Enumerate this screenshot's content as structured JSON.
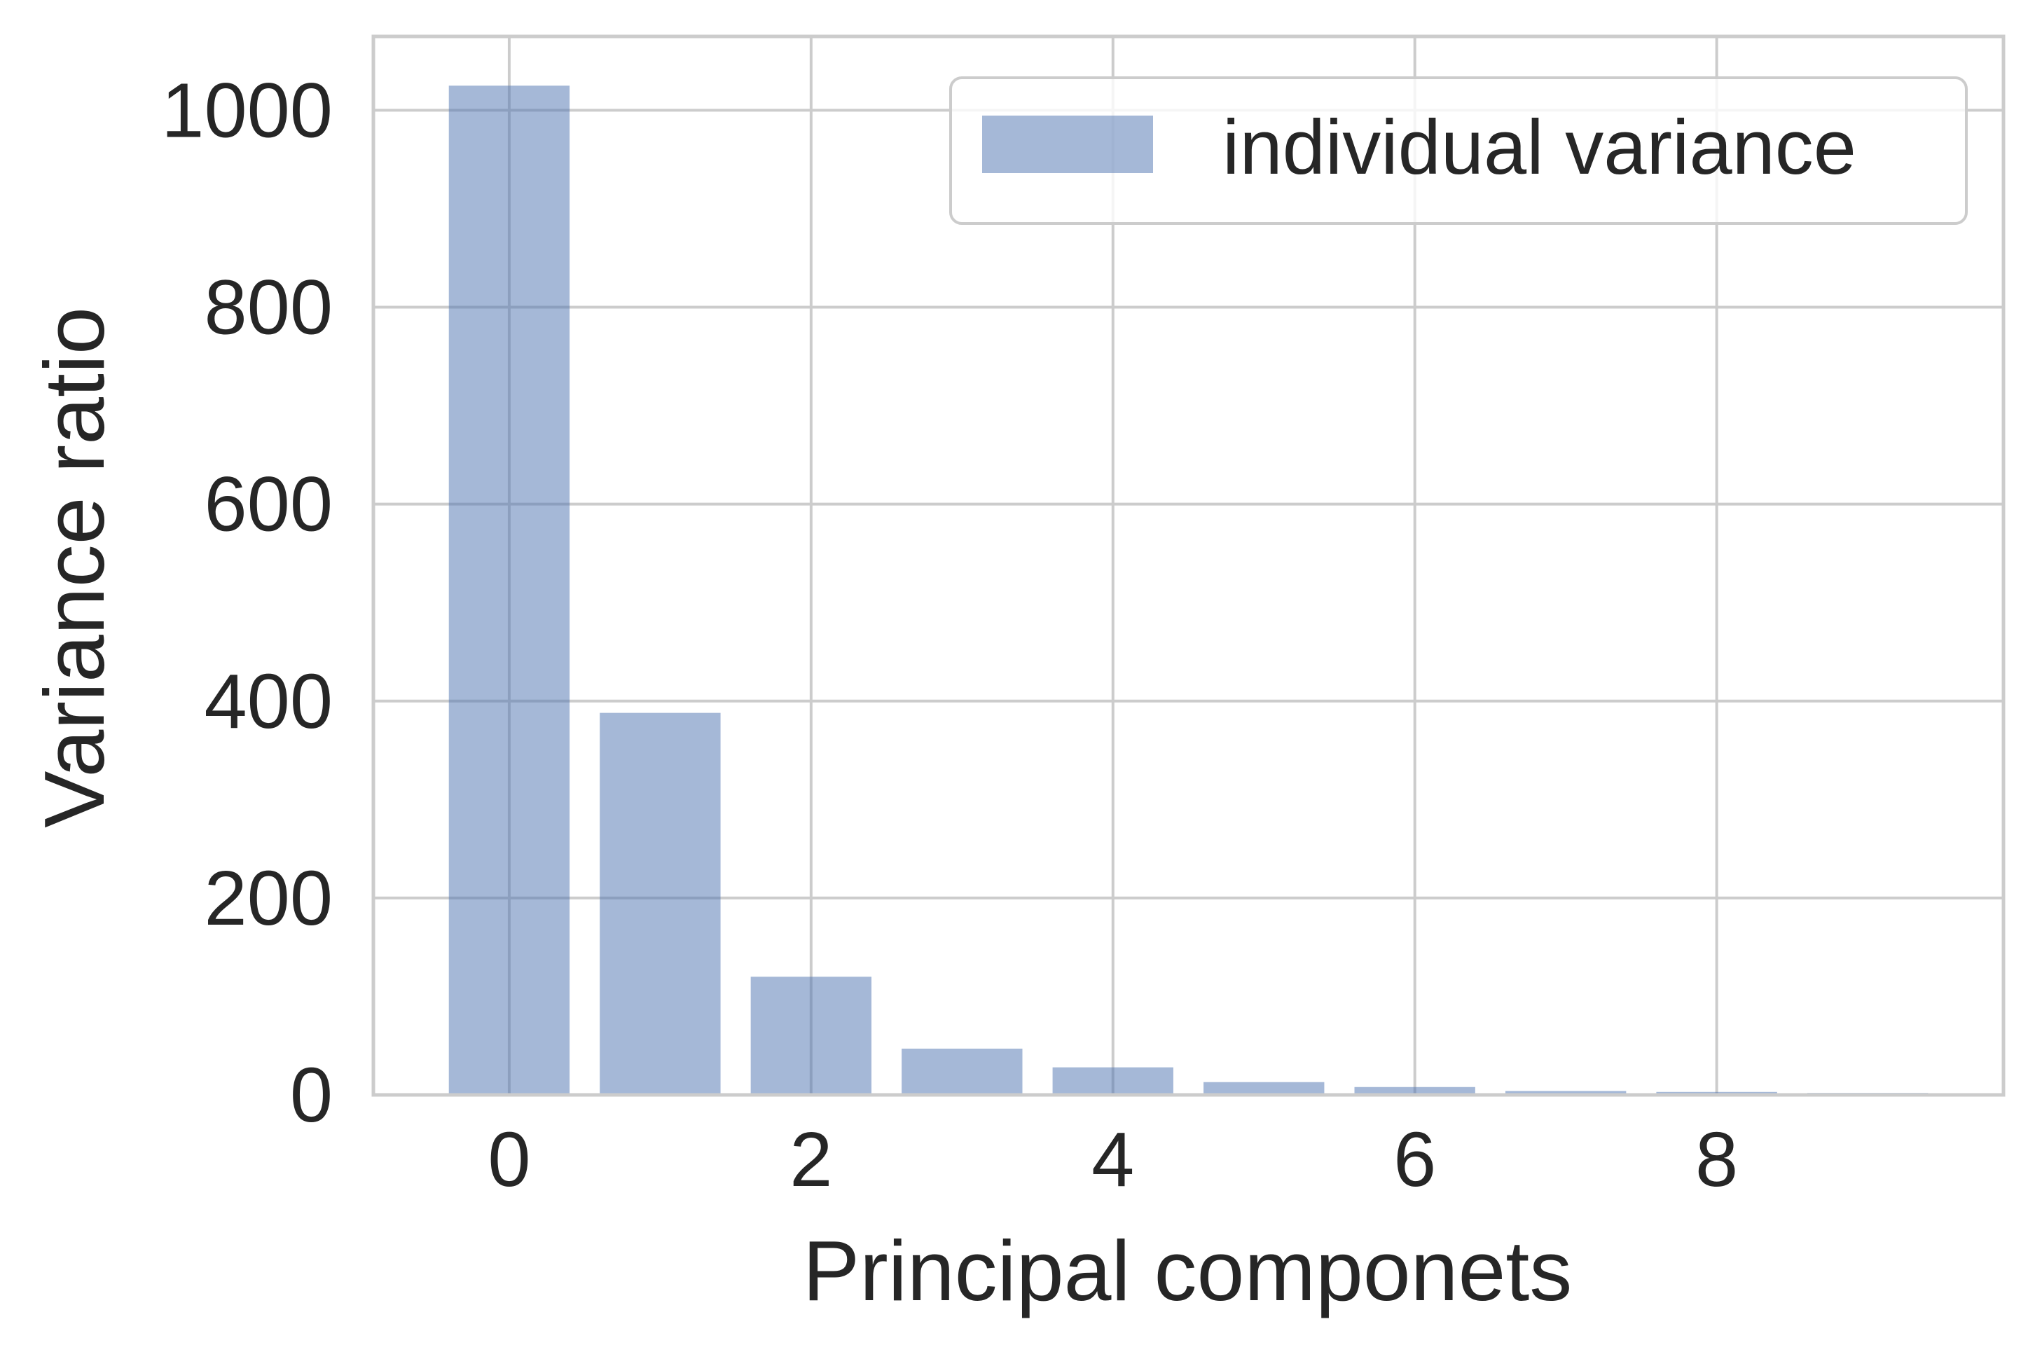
{
  "chart_data": {
    "type": "bar",
    "title": "",
    "xlabel": "Principal componets",
    "ylabel": "Variance ratio",
    "x": [
      0,
      1,
      2,
      3,
      4,
      5,
      6,
      7,
      8,
      9
    ],
    "values": [
      1025,
      388,
      120,
      47,
      28,
      13,
      8,
      4,
      3,
      2
    ],
    "series": [
      {
        "name": "individual variance",
        "values": [
          1025,
          388,
          120,
          47,
          28,
          13,
          8,
          4,
          3,
          2
        ]
      }
    ],
    "xlim": [
      -0.9,
      9.9
    ],
    "ylim": [
      0,
      1075
    ],
    "xticks": [
      0,
      2,
      4,
      6,
      8
    ],
    "yticks": [
      0,
      200,
      400,
      600,
      800,
      1000
    ],
    "bar_width": 0.8,
    "grid": true,
    "legend_position": "top-right",
    "colors": {
      "bar_fill": "#4c72b0",
      "bar_opacity": 0.5,
      "grid": "#cccccc",
      "spine": "#cccccc",
      "text": "#262626",
      "background": "#ffffff"
    }
  }
}
